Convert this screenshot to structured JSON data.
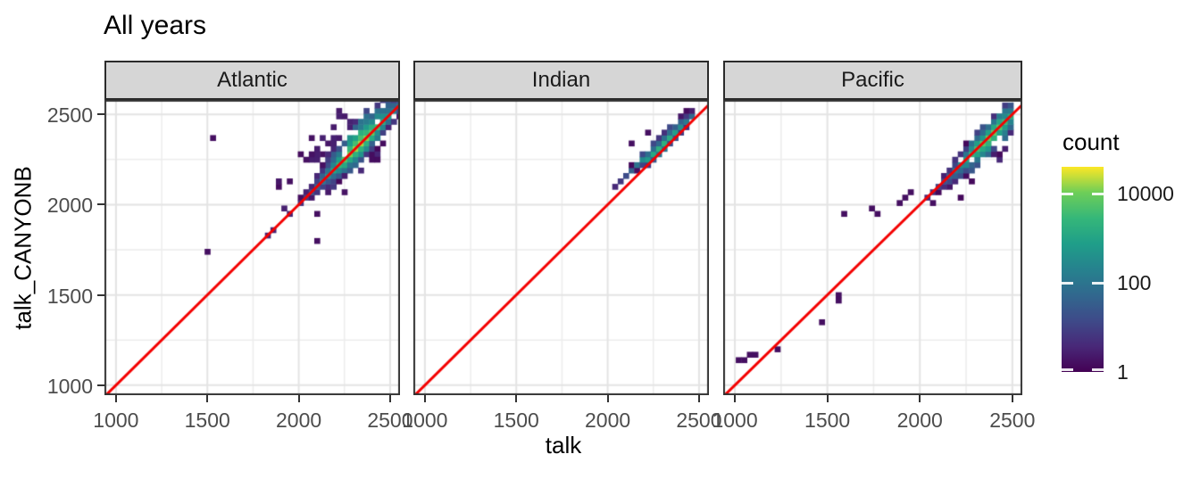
{
  "chart_data": {
    "type": "bin2d",
    "title": "All years",
    "xlabel": "talk",
    "ylabel": "talk_CANYONB",
    "x_domain": [
      937,
      2554
    ],
    "y_domain": [
      945,
      2580
    ],
    "x_ticks": [
      1000,
      1500,
      2000,
      2500
    ],
    "y_ticks": [
      1000,
      1500,
      2000,
      2500
    ],
    "x_minor": [
      1250,
      1750,
      2250
    ],
    "y_minor": [
      1250,
      1750,
      2250
    ],
    "binwidth": 30,
    "grid": {
      "major_color": "#e4e4e4",
      "minor_color": "#ededed"
    },
    "panel_border_color": "#333333",
    "identity_line": {
      "slope": 1,
      "intercept": 0,
      "color": "#f40000"
    },
    "legend": {
      "title": "count",
      "ticks": [
        1,
        100,
        10000
      ],
      "log10_max": 4.6,
      "position": "right",
      "viridis": [
        "#440154",
        "#482878",
        "#3e4a89",
        "#31688e",
        "#26828e",
        "#1f9e89",
        "#35b779",
        "#6ece58",
        "#fde725"
      ]
    },
    "facets": [
      {
        "label": "Atlantic",
        "seed": 7,
        "cluster": {
          "x_range": [
            2050,
            2545
          ],
          "peak_x": 2320,
          "peak_log10": 4.25,
          "sigma": 170,
          "offset": 20,
          "tilt": 0,
          "above": 6,
          "below": 4,
          "decay_above": 0.62,
          "decay_below": 0.95,
          "tail": [
            1760,
            2050
          ]
        },
        "scatter": [
          {
            "n": 26,
            "x": [
              1850,
              2280
            ],
            "dy": [
              50,
              300
            ]
          },
          {
            "n": 9,
            "x": [
              2140,
              2440
            ],
            "dy": [
              -170,
              -40
            ]
          }
        ],
        "outliers": [
          [
            1540,
            2380
          ],
          [
            1490,
            1725
          ],
          [
            2085,
            1790
          ],
          [
            2110,
            1935
          ]
        ]
      },
      {
        "label": "Indian",
        "seed": 11,
        "cluster": {
          "x_range": [
            2050,
            2480
          ],
          "peak_x": 2310,
          "peak_log10": 3.3,
          "sigma": 140,
          "offset": 25,
          "tilt": -0.1,
          "above": 2,
          "below": 1,
          "decay_above": 1.25,
          "decay_below": 1.7
        },
        "scatter": [],
        "outliers": [
          [
            2205,
            2395
          ],
          [
            2130,
            2330
          ]
        ]
      },
      {
        "label": "Pacific",
        "seed": 23,
        "cluster": {
          "x_range": [
            2050,
            2505
          ],
          "peak_x": 2390,
          "peak_log10": 3.95,
          "sigma": 170,
          "offset": -15,
          "tilt": 0,
          "above": 3,
          "below": 4,
          "decay_above": 0.9,
          "decay_below": 0.75
        },
        "scatter": [
          {
            "n": 6,
            "x": [
              2150,
              2480
            ],
            "dy": [
              -200,
              -80
            ]
          }
        ],
        "outliers": [
          [
            1015,
            1130
          ],
          [
            1045,
            1130
          ],
          [
            1085,
            1155
          ],
          [
            1110,
            1155
          ],
          [
            1220,
            1185
          ],
          [
            1475,
            1350
          ],
          [
            1550,
            1495
          ],
          [
            1550,
            1465
          ],
          [
            1595,
            1950
          ],
          [
            1745,
            1970
          ],
          [
            1770,
            1940
          ],
          [
            1890,
            2020
          ],
          [
            1925,
            2040
          ],
          [
            1960,
            2055
          ],
          [
            2058,
            2010
          ]
        ]
      }
    ]
  }
}
